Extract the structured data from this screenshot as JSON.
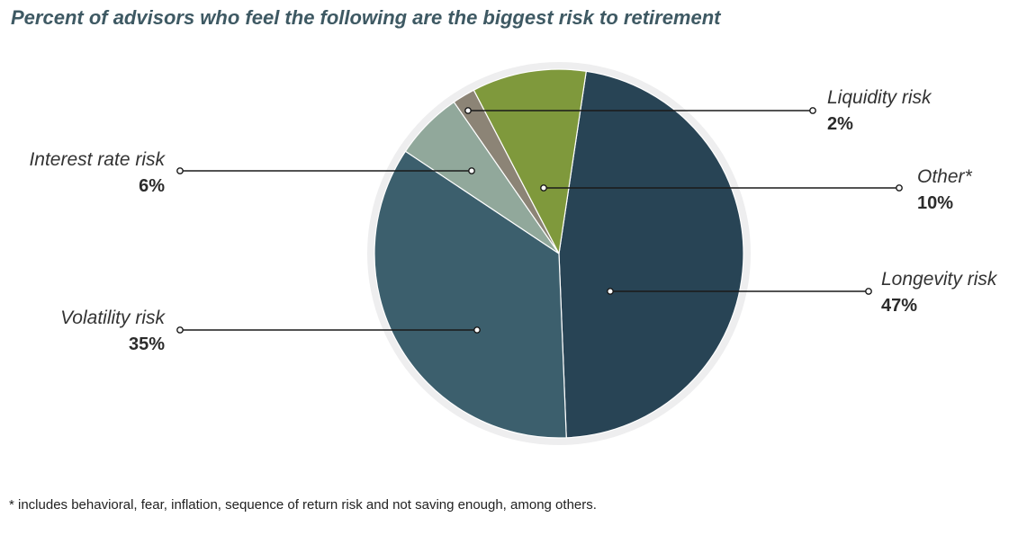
{
  "title": "Percent of advisors who feel the following are the biggest risk to retirement",
  "footnote": "* includes behavioral, fear, inflation, sequence of return risk and not saving enough, among others.",
  "chart_data": {
    "type": "pie",
    "title": "Percent of advisors who feel the following are the biggest risk to retirement",
    "slices": [
      {
        "label": "Longevity risk",
        "value": 47,
        "value_label": "47%",
        "color": "#284455"
      },
      {
        "label": "Volatility risk",
        "value": 35,
        "value_label": "35%",
        "color": "#3c5f6d"
      },
      {
        "label": "Interest rate risk",
        "value": 6,
        "value_label": "6%",
        "color": "#91a89b"
      },
      {
        "label": "Liquidity risk",
        "value": 2,
        "value_label": "2%",
        "color": "#8c8476"
      },
      {
        "label": "Other*",
        "value": 10,
        "value_label": "10%",
        "color": "#7f993c"
      }
    ],
    "ring_color": "#eeeeef",
    "leader_color": "#1a1a1a",
    "legend": "none"
  }
}
